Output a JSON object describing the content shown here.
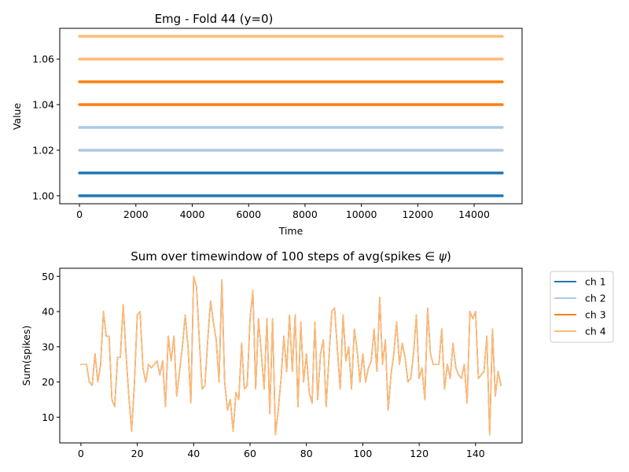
{
  "chart_data": [
    {
      "type": "line",
      "title": "Emg - Fold 44 (y=0)",
      "xlabel": "Time",
      "ylabel": "Value",
      "xlim": [
        -700,
        15700
      ],
      "ylim": [
        0.9965,
        1.0735
      ],
      "x_ticks": [
        0,
        2000,
        4000,
        6000,
        8000,
        10000,
        12000,
        14000
      ],
      "x_tick_labels": [
        "0",
        "2000",
        "4000",
        "6000",
        "8000",
        "10000",
        "12000",
        "14000"
      ],
      "y_ticks": [
        1.0,
        1.02,
        1.04,
        1.06
      ],
      "y_tick_labels": [
        "1.00",
        "1.02",
        "1.04",
        "1.06"
      ],
      "grid": false,
      "series": [
        {
          "x": [
            0,
            15000
          ],
          "values": [
            1.0,
            1.0
          ],
          "color": "#1f77b4"
        },
        {
          "x": [
            0,
            15000
          ],
          "values": [
            1.01,
            1.01
          ],
          "color": "#1f77b4"
        },
        {
          "x": [
            0,
            15000
          ],
          "values": [
            1.02,
            1.02
          ],
          "color": "#aec7e8"
        },
        {
          "x": [
            0,
            15000
          ],
          "values": [
            1.03,
            1.03
          ],
          "color": "#aec7e8"
        },
        {
          "x": [
            0,
            15000
          ],
          "values": [
            1.04,
            1.04
          ],
          "color": "#ff7f0e"
        },
        {
          "x": [
            0,
            15000
          ],
          "values": [
            1.05,
            1.05
          ],
          "color": "#ff7f0e"
        },
        {
          "x": [
            0,
            15000
          ],
          "values": [
            1.06,
            1.06
          ],
          "color": "#ffbb78"
        },
        {
          "x": [
            0,
            15000
          ],
          "values": [
            1.07,
            1.07
          ],
          "color": "#ffbb78"
        }
      ]
    },
    {
      "type": "line",
      "title": "Sum over timewindow of 100 steps of avg(spikes ∈ ψ)",
      "title_parts": {
        "before": "Sum over timewindow of 100 steps of avg(spikes ",
        "symbol": "∈",
        "var": "ψ",
        "after": ")"
      },
      "xlabel": "",
      "ylabel": "Sum(spikes)",
      "xlim": [
        -7.5,
        156.5
      ],
      "ylim": [
        2.7,
        52.3
      ],
      "x_ticks": [
        0,
        20,
        40,
        60,
        80,
        100,
        120,
        140
      ],
      "x_tick_labels": [
        "0",
        "20",
        "40",
        "60",
        "80",
        "100",
        "120",
        "140"
      ],
      "y_ticks": [
        10,
        20,
        30,
        40,
        50
      ],
      "y_tick_labels": [
        "10",
        "20",
        "30",
        "40",
        "50"
      ],
      "grid": false,
      "legend_position": "outside-right-top",
      "series": [
        {
          "name": "ch 1",
          "color": "#1f77b4",
          "values": [
            25,
            25,
            25,
            20,
            19,
            28,
            20,
            25,
            40,
            33,
            33,
            15,
            13,
            27,
            27,
            42,
            28,
            16,
            6,
            20,
            39,
            40,
            24,
            20,
            25,
            24,
            25,
            26,
            22,
            26,
            13,
            33,
            26,
            33,
            16,
            23,
            30,
            39,
            30,
            14,
            50,
            47,
            32,
            18,
            19,
            32,
            43,
            37,
            32,
            20,
            49,
            20,
            12,
            15,
            6,
            17,
            15,
            31,
            18,
            19,
            38,
            46,
            18,
            38,
            28,
            18,
            38,
            11,
            38,
            5,
            12,
            21,
            33,
            23,
            39,
            23,
            39,
            13,
            37,
            20,
            28,
            17,
            14,
            37,
            15,
            28,
            32,
            13,
            27,
            40,
            41,
            29,
            18,
            39,
            26,
            30,
            18,
            35,
            29,
            20,
            28,
            20,
            24,
            26,
            35,
            23,
            44,
            25,
            32,
            12,
            22,
            28,
            37,
            25,
            31,
            27,
            20,
            21,
            28,
            39,
            21,
            24,
            15,
            41,
            28,
            25,
            25,
            25,
            35,
            18,
            25,
            21,
            31,
            24,
            22,
            21,
            25,
            14,
            40,
            38,
            40,
            21,
            22,
            23,
            33,
            5,
            35,
            16,
            23,
            19
          ]
        },
        {
          "name": "ch 2",
          "color": "#aec7e8",
          "values": [
            25,
            25,
            25,
            20,
            19,
            28,
            20,
            25,
            40,
            33,
            33,
            15,
            13,
            27,
            27,
            42,
            28,
            16,
            6,
            20,
            39,
            40,
            24,
            20,
            25,
            24,
            25,
            26,
            22,
            26,
            13,
            33,
            26,
            33,
            16,
            23,
            30,
            39,
            30,
            14,
            50,
            47,
            32,
            18,
            19,
            32,
            43,
            37,
            32,
            20,
            49,
            20,
            12,
            15,
            6,
            17,
            15,
            31,
            18,
            19,
            38,
            46,
            18,
            38,
            28,
            18,
            38,
            11,
            38,
            5,
            12,
            21,
            33,
            23,
            39,
            23,
            39,
            13,
            37,
            20,
            28,
            17,
            14,
            37,
            15,
            28,
            32,
            13,
            27,
            40,
            41,
            29,
            18,
            39,
            26,
            30,
            18,
            35,
            29,
            20,
            28,
            20,
            24,
            26,
            35,
            23,
            44,
            25,
            32,
            12,
            22,
            28,
            37,
            25,
            31,
            27,
            20,
            21,
            28,
            39,
            21,
            24,
            15,
            41,
            28,
            25,
            25,
            25,
            35,
            18,
            25,
            21,
            31,
            24,
            22,
            21,
            25,
            14,
            40,
            38,
            40,
            21,
            22,
            23,
            33,
            5,
            35,
            16,
            23,
            19
          ]
        },
        {
          "name": "ch 3",
          "color": "#ff7f0e",
          "values": [
            25,
            25,
            25,
            20,
            19,
            28,
            20,
            25,
            40,
            33,
            33,
            15,
            13,
            27,
            27,
            42,
            28,
            16,
            6,
            20,
            39,
            40,
            24,
            20,
            25,
            24,
            25,
            26,
            22,
            26,
            13,
            33,
            26,
            33,
            16,
            23,
            30,
            39,
            30,
            14,
            50,
            47,
            32,
            18,
            19,
            32,
            43,
            37,
            32,
            20,
            49,
            20,
            12,
            15,
            6,
            17,
            15,
            31,
            18,
            19,
            38,
            46,
            18,
            38,
            28,
            18,
            38,
            11,
            38,
            5,
            12,
            21,
            33,
            23,
            39,
            23,
            39,
            13,
            37,
            20,
            28,
            17,
            14,
            37,
            15,
            28,
            32,
            13,
            27,
            40,
            41,
            29,
            18,
            39,
            26,
            30,
            18,
            35,
            29,
            20,
            28,
            20,
            24,
            26,
            35,
            23,
            44,
            25,
            32,
            12,
            22,
            28,
            37,
            25,
            31,
            27,
            20,
            21,
            28,
            39,
            21,
            24,
            15,
            41,
            28,
            25,
            25,
            25,
            35,
            18,
            25,
            21,
            31,
            24,
            22,
            21,
            25,
            14,
            40,
            38,
            40,
            21,
            22,
            23,
            33,
            5,
            35,
            16,
            23,
            19
          ]
        },
        {
          "name": "ch 4",
          "color": "#ffbb78",
          "values": [
            25,
            25,
            25,
            20,
            19,
            28,
            20,
            25,
            40,
            33,
            33,
            15,
            13,
            27,
            27,
            42,
            28,
            16,
            6,
            20,
            39,
            40,
            24,
            20,
            25,
            24,
            25,
            26,
            22,
            26,
            13,
            33,
            26,
            33,
            16,
            23,
            30,
            39,
            30,
            14,
            50,
            47,
            32,
            18,
            19,
            32,
            43,
            37,
            32,
            20,
            49,
            20,
            12,
            15,
            6,
            17,
            15,
            31,
            18,
            19,
            38,
            46,
            18,
            38,
            28,
            18,
            38,
            11,
            38,
            5,
            12,
            21,
            33,
            23,
            39,
            23,
            39,
            13,
            37,
            20,
            28,
            17,
            14,
            37,
            15,
            28,
            32,
            13,
            27,
            40,
            41,
            29,
            18,
            39,
            26,
            30,
            18,
            35,
            29,
            20,
            28,
            20,
            24,
            26,
            35,
            23,
            44,
            25,
            32,
            12,
            22,
            28,
            37,
            25,
            31,
            27,
            20,
            21,
            28,
            39,
            21,
            24,
            15,
            41,
            28,
            25,
            25,
            25,
            35,
            18,
            25,
            21,
            31,
            24,
            22,
            21,
            25,
            14,
            40,
            38,
            40,
            21,
            22,
            23,
            33,
            5,
            35,
            16,
            23,
            19
          ]
        }
      ]
    }
  ]
}
